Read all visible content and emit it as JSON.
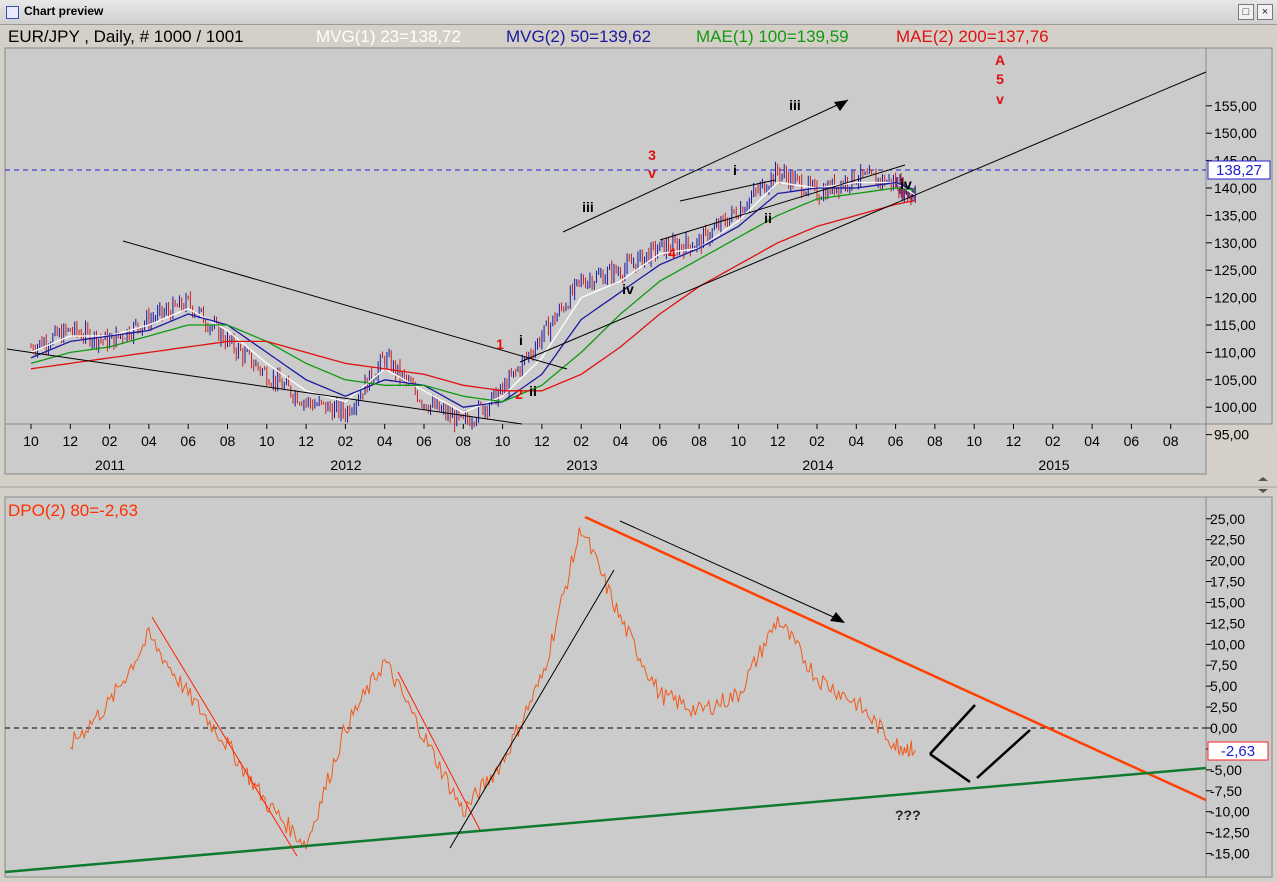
{
  "window": {
    "title": "Chart preview"
  },
  "upper": {
    "header": [
      {
        "text": "EUR/JPY , Daily, # 1000 / 1001",
        "color": "#000000"
      },
      {
        "text": "MVG(1) 23=138,72",
        "color": "#ffffff"
      },
      {
        "text": "MVG(2) 50=139,62",
        "color": "#1a1aa0"
      },
      {
        "text": "MAE(1) 100=139,59",
        "color": "#109a10"
      },
      {
        "text": "MAE(2) 200=137,76",
        "color": "#e01010"
      }
    ],
    "y_ticks": [
      "155,00",
      "150,00",
      "145,00",
      "140,00",
      "135,00",
      "130,00",
      "125,00",
      "120,00",
      "115,00",
      "110,00",
      "105,00",
      "100,00",
      "95,00"
    ],
    "last_price": "138,27",
    "x_month_labels": [
      "10",
      "12",
      "02",
      "04",
      "06",
      "08",
      "10",
      "12",
      "02",
      "04",
      "06",
      "08",
      "10",
      "12",
      "02",
      "04",
      "06",
      "08",
      "10",
      "12",
      "02",
      "04",
      "06",
      "08",
      "10",
      "12",
      "02",
      "04",
      "06",
      "08"
    ],
    "x_year_labels": [
      "2011",
      "2012",
      "2013",
      "2014",
      "2015"
    ],
    "annotations": [
      "A",
      "5",
      "v",
      "3",
      "v",
      "iii",
      "i",
      "iii",
      "iv",
      "4",
      "ii",
      "iv",
      "1",
      "i",
      "2",
      "ii"
    ]
  },
  "lower": {
    "header": "DPO(2) 80=-2,63",
    "y_ticks": [
      "25,00",
      "22,50",
      "20,00",
      "17,50",
      "15,00",
      "12,50",
      "10,00",
      "7,50",
      "5,00",
      "2,50",
      "0,00",
      "-2,50",
      "-5,00",
      "-7,50",
      "-10,00",
      "-12,50",
      "-15,00"
    ],
    "last_value": "-2,63",
    "annotation": "???"
  },
  "colors": {
    "background": "#cbcbcb",
    "candle_up": "#1a1aa0",
    "candle_down": "#cc2020",
    "mvg1": "#ffffff",
    "mvg2": "#1a1aa0",
    "mae1": "#109a10",
    "mae2": "#e01010",
    "dpo": "#f05a1a",
    "annotation_red": "#e01010",
    "trendline": "#000000",
    "dpo_resistance": "#ff4000",
    "dpo_support": "#107a30"
  },
  "chart_data": [
    {
      "type": "line",
      "title": "EUR/JPY , Daily, # 1000 / 1001",
      "xlabel": "",
      "ylabel": "",
      "ylim": [
        93,
        158
      ],
      "x": [
        "2010-10",
        "2010-12",
        "2011-02",
        "2011-04",
        "2011-06",
        "2011-08",
        "2011-10",
        "2011-12",
        "2012-02",
        "2012-04",
        "2012-06",
        "2012-08",
        "2012-10",
        "2012-12",
        "2013-02",
        "2013-04",
        "2013-06",
        "2013-08",
        "2013-10",
        "2013-12",
        "2014-02",
        "2014-04",
        "2014-06",
        "2014-07"
      ],
      "series": [
        {
          "name": "EUR/JPY",
          "values": [
            111,
            114,
            112,
            116,
            119,
            112,
            106,
            101,
            99,
            109,
            101,
            97,
            103,
            113,
            123,
            125,
            129,
            130,
            136,
            143,
            139,
            142,
            141,
            138.27
          ]
        },
        {
          "name": "MVG(1) 23",
          "values": [
            110,
            113,
            113,
            115,
            118,
            114,
            108,
            103,
            101,
            107,
            103,
            99,
            102,
            109,
            120,
            123,
            128,
            129,
            134,
            141,
            140,
            141,
            141,
            138.72
          ]
        },
        {
          "name": "MVG(2) 50",
          "values": [
            109,
            112,
            113,
            114,
            117,
            115,
            110,
            105,
            102,
            105,
            104,
            100,
            101,
            106,
            116,
            121,
            126,
            129,
            133,
            139,
            140,
            140,
            141,
            139.62
          ]
        },
        {
          "name": "MAE(1) 100",
          "values": [
            108,
            110,
            111,
            113,
            115,
            115,
            112,
            108,
            105,
            104,
            104,
            102,
            101,
            104,
            110,
            117,
            123,
            127,
            131,
            135,
            138,
            139,
            140,
            139.59
          ]
        },
        {
          "name": "MAE(2) 200",
          "values": [
            107,
            108,
            109,
            110,
            111,
            112,
            112,
            110,
            108,
            107,
            106,
            104,
            103,
            103,
            106,
            111,
            117,
            122,
            126,
            130,
            133,
            135,
            137,
            137.76
          ]
        }
      ]
    },
    {
      "type": "line",
      "title": "DPO(2) 80=-2,63",
      "xlabel": "",
      "ylabel": "",
      "ylim": [
        -15,
        25
      ],
      "x": [
        "2010-12",
        "2011-02",
        "2011-04",
        "2011-06",
        "2011-08",
        "2011-10",
        "2011-12",
        "2012-02",
        "2012-04",
        "2012-06",
        "2012-08",
        "2012-10",
        "2012-12",
        "2013-02",
        "2013-04",
        "2013-06",
        "2013-08",
        "2013-10",
        "2013-12",
        "2014-02",
        "2014-04",
        "2014-06",
        "2014-07"
      ],
      "series": [
        {
          "name": "DPO(2) 80",
          "values": [
            -2,
            3,
            11,
            4,
            -2,
            -9,
            -14,
            0,
            8,
            -1,
            -10,
            -4,
            6,
            24,
            13,
            4,
            2,
            4,
            13,
            6,
            3,
            -2,
            -2.63
          ]
        }
      ]
    }
  ]
}
